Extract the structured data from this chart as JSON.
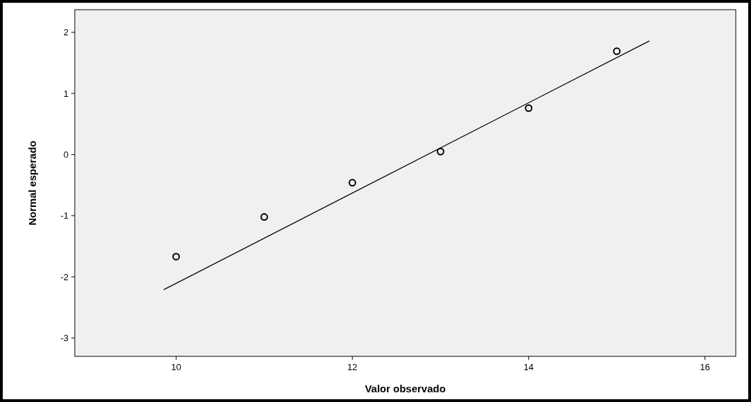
{
  "chart_data": {
    "type": "scatter",
    "xlabel": "Valor observado",
    "ylabel": "Normal esperado",
    "xlim": [
      8.85,
      16.35
    ],
    "ylim": [
      -3.3,
      2.37
    ],
    "xticks": [
      10,
      12,
      14,
      16
    ],
    "yticks": [
      -3,
      -2,
      -1,
      0,
      1,
      2
    ],
    "grid": false,
    "series": [
      {
        "marker": "circle",
        "color": "#000000",
        "x": [
          10,
          11,
          12,
          13,
          14,
          15
        ],
        "values": [
          -1.67,
          -1.02,
          -0.46,
          0.05,
          0.76,
          1.69
        ]
      },
      {
        "type": "line",
        "color": "#000000",
        "x": [
          9.86,
          15.37
        ],
        "values": [
          -2.21,
          1.86
        ]
      }
    ]
  }
}
